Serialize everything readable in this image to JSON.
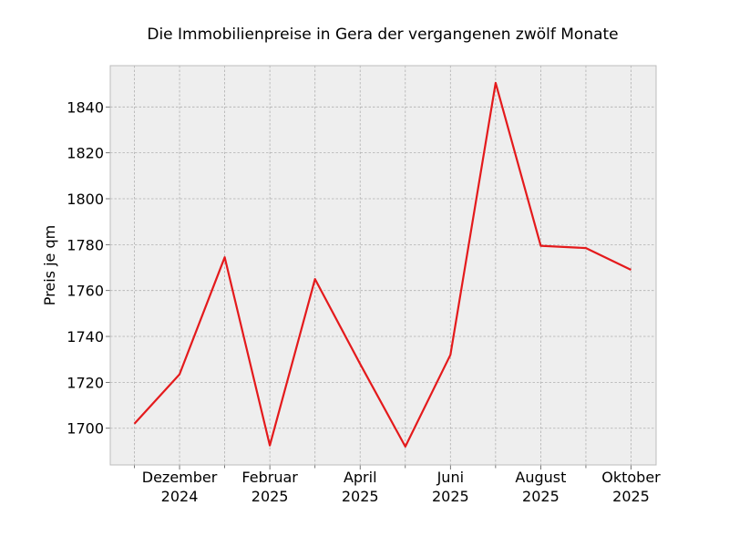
{
  "chart_data": {
    "type": "line",
    "title": "Die Immobilienpreise in Gera der vergangenen zwölf Monate",
    "xlabel": "",
    "ylabel": "Preis je qm",
    "x": [
      "2024-11",
      "2024-12",
      "2025-01",
      "2025-02",
      "2025-03",
      "2025-04",
      "2025-05",
      "2025-06",
      "2025-07",
      "2025-08",
      "2025-09",
      "2025-10"
    ],
    "series": [
      {
        "values": [
          1702,
          1723.5,
          1774.5,
          1692.5,
          1765,
          1728,
          1692,
          1732,
          1850.5,
          1779.5,
          1778.5,
          1769
        ]
      }
    ],
    "x_ticks": [
      {
        "month": "2024-12",
        "line1": "Dezember",
        "line2": "2024"
      },
      {
        "month": "2025-02",
        "line1": "Februar",
        "line2": "2025"
      },
      {
        "month": "2025-04",
        "line1": "April",
        "line2": "2025"
      },
      {
        "month": "2025-06",
        "line1": "Juni",
        "line2": "2025"
      },
      {
        "month": "2025-08",
        "line1": "August",
        "line2": "2025"
      },
      {
        "month": "2025-10",
        "line1": "Oktober",
        "line2": "2025"
      }
    ],
    "y_ticks": [
      1700,
      1720,
      1740,
      1760,
      1780,
      1800,
      1820,
      1840
    ],
    "ylim": [
      1684,
      1858
    ],
    "grid": true,
    "colors": {
      "line": "#e41a1c",
      "plot_background": "#eeeeee",
      "grid": "#b0b0b0",
      "frame": "#bcbcbc"
    }
  }
}
